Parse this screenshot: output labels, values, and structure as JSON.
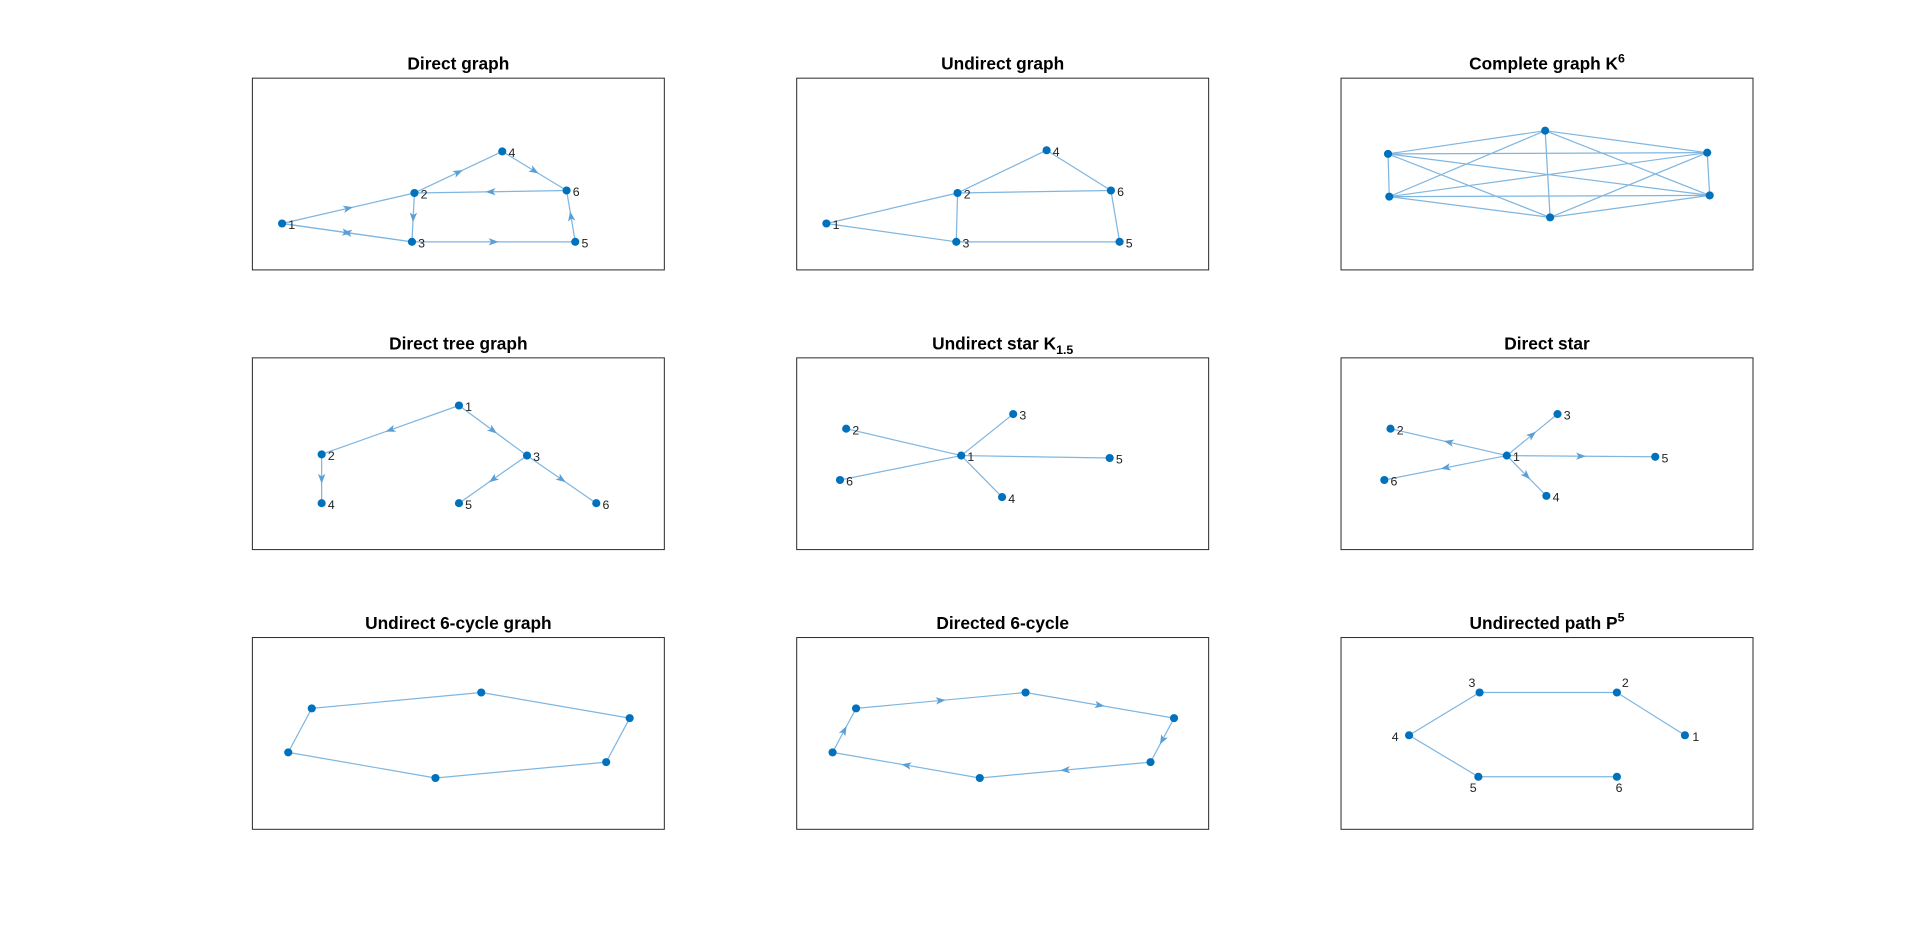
{
  "panels": [
    {
      "title": "Direct graph",
      "node_labels": [
        "1",
        "2",
        "3",
        "4",
        "5",
        "6"
      ]
    },
    {
      "title": "Undirect graph",
      "node_labels": [
        "1",
        "2",
        "3",
        "4",
        "5",
        "6"
      ]
    },
    {
      "title": "Complete graph K",
      "title_superscript": "6"
    },
    {
      "title": "Direct tree graph",
      "node_labels": [
        "1",
        "2",
        "3",
        "4",
        "5",
        "6"
      ]
    },
    {
      "title": "Undirect star K",
      "title_subscript": "1.5",
      "node_labels": [
        "1",
        "2",
        "3",
        "4",
        "5",
        "6"
      ]
    },
    {
      "title": "Direct star",
      "node_labels": [
        "1",
        "2",
        "3",
        "4",
        "5",
        "6"
      ]
    },
    {
      "title": "Undirect 6-cycle graph"
    },
    {
      "title": "Directed 6-cycle"
    },
    {
      "title": "Undirected path P",
      "title_superscript": "5",
      "node_labels": [
        "1",
        "2",
        "3",
        "4",
        "5",
        "6"
      ]
    }
  ]
}
